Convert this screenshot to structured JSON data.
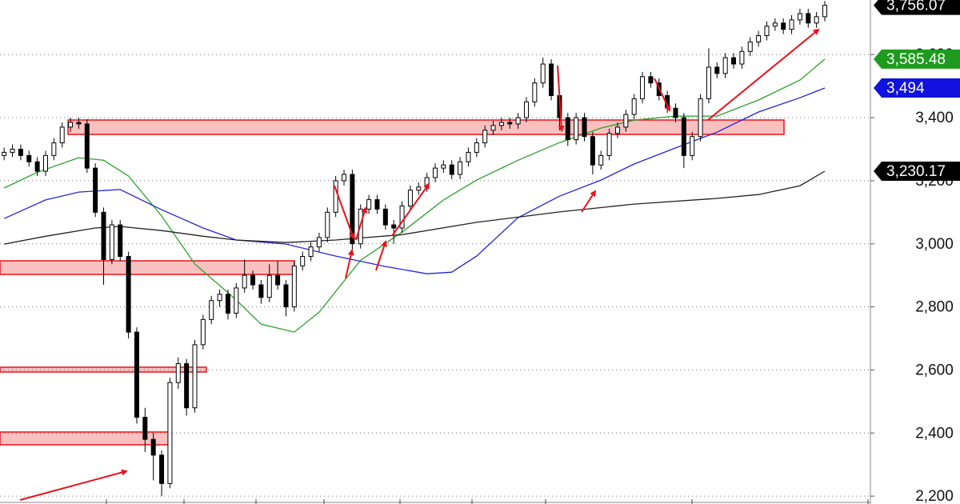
{
  "chart_data": {
    "type": "candlestick",
    "ylim": [
      2175,
      3773
    ],
    "yticks": [
      {
        "value": 2200,
        "label": "2,200"
      },
      {
        "value": 2400,
        "label": "2,400"
      },
      {
        "value": 2600,
        "label": "2,600"
      },
      {
        "value": 2800,
        "label": "2,800"
      },
      {
        "value": 3000,
        "label": "3,000"
      },
      {
        "value": 3200,
        "label": "3,200"
      },
      {
        "value": 3400,
        "label": "3,400"
      },
      {
        "value": 3600,
        "label": "3,600"
      }
    ],
    "grid": true,
    "xlim": [
      -0.5,
      104.5
    ],
    "open": [
      3280,
      3290,
      3300,
      3280,
      3260,
      3230,
      3280,
      3320,
      3370,
      3385,
      3380,
      3240,
      3100,
      2950,
      3060,
      2960,
      2720,
      2450,
      2380,
      2330,
      2240,
      2560,
      2620,
      2480,
      2680,
      2760,
      2820,
      2840,
      2780,
      2860,
      2900,
      2870,
      2830,
      2900,
      2870,
      2800,
      2930,
      2960,
      2990,
      3020,
      3100,
      3200,
      3220,
      3000,
      3110,
      3140,
      3110,
      3060,
      3050,
      3120,
      3170,
      3180,
      3210,
      3240,
      3250,
      3220,
      3260,
      3290,
      3320,
      3360,
      3375,
      3385,
      3380,
      3400,
      3450,
      3510,
      3570,
      3470,
      3400,
      3330,
      3400,
      3340,
      3250,
      3280,
      3350,
      3370,
      3410,
      3460,
      3530,
      3510,
      3470,
      3430,
      3400,
      3280,
      3340,
      3460,
      3560,
      3540,
      3590,
      3570,
      3610,
      3640,
      3660,
      3690,
      3700,
      3680,
      3710,
      3730,
      3700,
      3720
    ],
    "high": [
      3305,
      3315,
      3315,
      3295,
      3275,
      3295,
      3335,
      3385,
      3400,
      3400,
      3395,
      3255,
      3115,
      3075,
      3075,
      2975,
      2735,
      2480,
      2400,
      2345,
      2575,
      2640,
      2635,
      2695,
      2775,
      2835,
      2855,
      2855,
      2875,
      2950,
      2915,
      2885,
      2935,
      2945,
      2885,
      2945,
      2975,
      3005,
      3035,
      3115,
      3215,
      3235,
      3235,
      3125,
      3155,
      3155,
      3125,
      3075,
      3135,
      3185,
      3195,
      3225,
      3255,
      3265,
      3265,
      3275,
      3305,
      3335,
      3375,
      3390,
      3400,
      3400,
      3415,
      3465,
      3525,
      3590,
      3585,
      3485,
      3415,
      3415,
      3415,
      3355,
      3295,
      3365,
      3385,
      3425,
      3475,
      3545,
      3545,
      3525,
      3485,
      3445,
      3415,
      3355,
      3475,
      3620,
      3575,
      3605,
      3605,
      3625,
      3655,
      3675,
      3705,
      3715,
      3715,
      3725,
      3745,
      3745,
      3735,
      3770
    ],
    "low": [
      3265,
      3275,
      3265,
      3245,
      3215,
      3215,
      3265,
      3305,
      3355,
      3365,
      3225,
      3085,
      2870,
      2935,
      2945,
      2700,
      2430,
      2340,
      2250,
      2200,
      2225,
      2540,
      2455,
      2465,
      2665,
      2745,
      2800,
      2760,
      2765,
      2845,
      2855,
      2810,
      2815,
      2855,
      2770,
      2785,
      2915,
      2945,
      2975,
      3005,
      3085,
      3185,
      2980,
      2985,
      3095,
      3095,
      3045,
      3000,
      3035,
      3105,
      3155,
      3165,
      3195,
      3225,
      3205,
      3205,
      3245,
      3275,
      3305,
      3345,
      3360,
      3365,
      3365,
      3385,
      3435,
      3495,
      3455,
      3360,
      3310,
      3315,
      3325,
      3220,
      3235,
      3265,
      3335,
      3355,
      3395,
      3445,
      3495,
      3455,
      3415,
      3385,
      3240,
      3265,
      3325,
      3445,
      3525,
      3525,
      3555,
      3555,
      3595,
      3625,
      3645,
      3675,
      3665,
      3665,
      3695,
      3685,
      3685,
      3705
    ],
    "close": [
      3290,
      3300,
      3280,
      3260,
      3230,
      3280,
      3320,
      3370,
      3385,
      3380,
      3240,
      3100,
      2950,
      3060,
      2960,
      2720,
      2450,
      2380,
      2330,
      2240,
      2560,
      2620,
      2480,
      2680,
      2760,
      2820,
      2840,
      2780,
      2860,
      2900,
      2870,
      2830,
      2900,
      2870,
      2800,
      2930,
      2960,
      2990,
      3020,
      3100,
      3200,
      3220,
      3000,
      3110,
      3140,
      3110,
      3060,
      3050,
      3120,
      3170,
      3180,
      3210,
      3240,
      3250,
      3220,
      3260,
      3290,
      3320,
      3360,
      3375,
      3385,
      3380,
      3400,
      3450,
      3510,
      3570,
      3470,
      3400,
      3330,
      3400,
      3340,
      3250,
      3280,
      3350,
      3370,
      3410,
      3460,
      3530,
      3510,
      3470,
      3430,
      3400,
      3280,
      3340,
      3460,
      3560,
      3540,
      3590,
      3570,
      3610,
      3640,
      3660,
      3690,
      3700,
      3680,
      3710,
      3730,
      3700,
      3720,
      3756.07
    ],
    "moving_averages": [
      {
        "color": "#2ca02c",
        "x": [
          0,
          4,
          9,
          12,
          15,
          19,
          23,
          28,
          31,
          35,
          38,
          43,
          48,
          53,
          57,
          62,
          67,
          72,
          76,
          81,
          86,
          91,
          96,
          99
        ],
        "values": [
          3177,
          3227,
          3273,
          3265,
          3215,
          3088,
          2936,
          2822,
          2745,
          2720,
          2783,
          2948,
          3037,
          3139,
          3202,
          3265,
          3321,
          3367,
          3392,
          3405,
          3405,
          3456,
          3519,
          3585.48
        ]
      },
      {
        "color": "#2525d8",
        "x": [
          0,
          5,
          9,
          14,
          19,
          24,
          28,
          34,
          40,
          46,
          51,
          54,
          57,
          62,
          67,
          72,
          76,
          81,
          86,
          91,
          96,
          99
        ],
        "values": [
          3080,
          3139,
          3164,
          3172,
          3108,
          3050,
          3012,
          2999,
          2961,
          2928,
          2905,
          2910,
          2961,
          3083,
          3151,
          3202,
          3253,
          3304,
          3354,
          3418,
          3463,
          3494
        ]
      },
      {
        "color": "#222222",
        "x": [
          0,
          5,
          11,
          14,
          19,
          24,
          28,
          34,
          40,
          48,
          57,
          67,
          76,
          86,
          91,
          96,
          99
        ],
        "values": [
          2999,
          3024,
          3050,
          3055,
          3042,
          3024,
          3012,
          3004,
          3012,
          3029,
          3068,
          3101,
          3126,
          3144,
          3156,
          3184,
          3230.17
        ]
      }
    ],
    "price_labels": [
      {
        "value": 3756.07,
        "label": "3,756.07",
        "color": "#000000"
      },
      {
        "value": 3585.48,
        "label": "3,585.48",
        "color": "#1e9b1e"
      },
      {
        "value": 3494,
        "label": "3,494",
        "color": "#1212e0"
      },
      {
        "value": 3230.17,
        "label": "3,230.17",
        "color": "#000000"
      }
    ]
  }
}
